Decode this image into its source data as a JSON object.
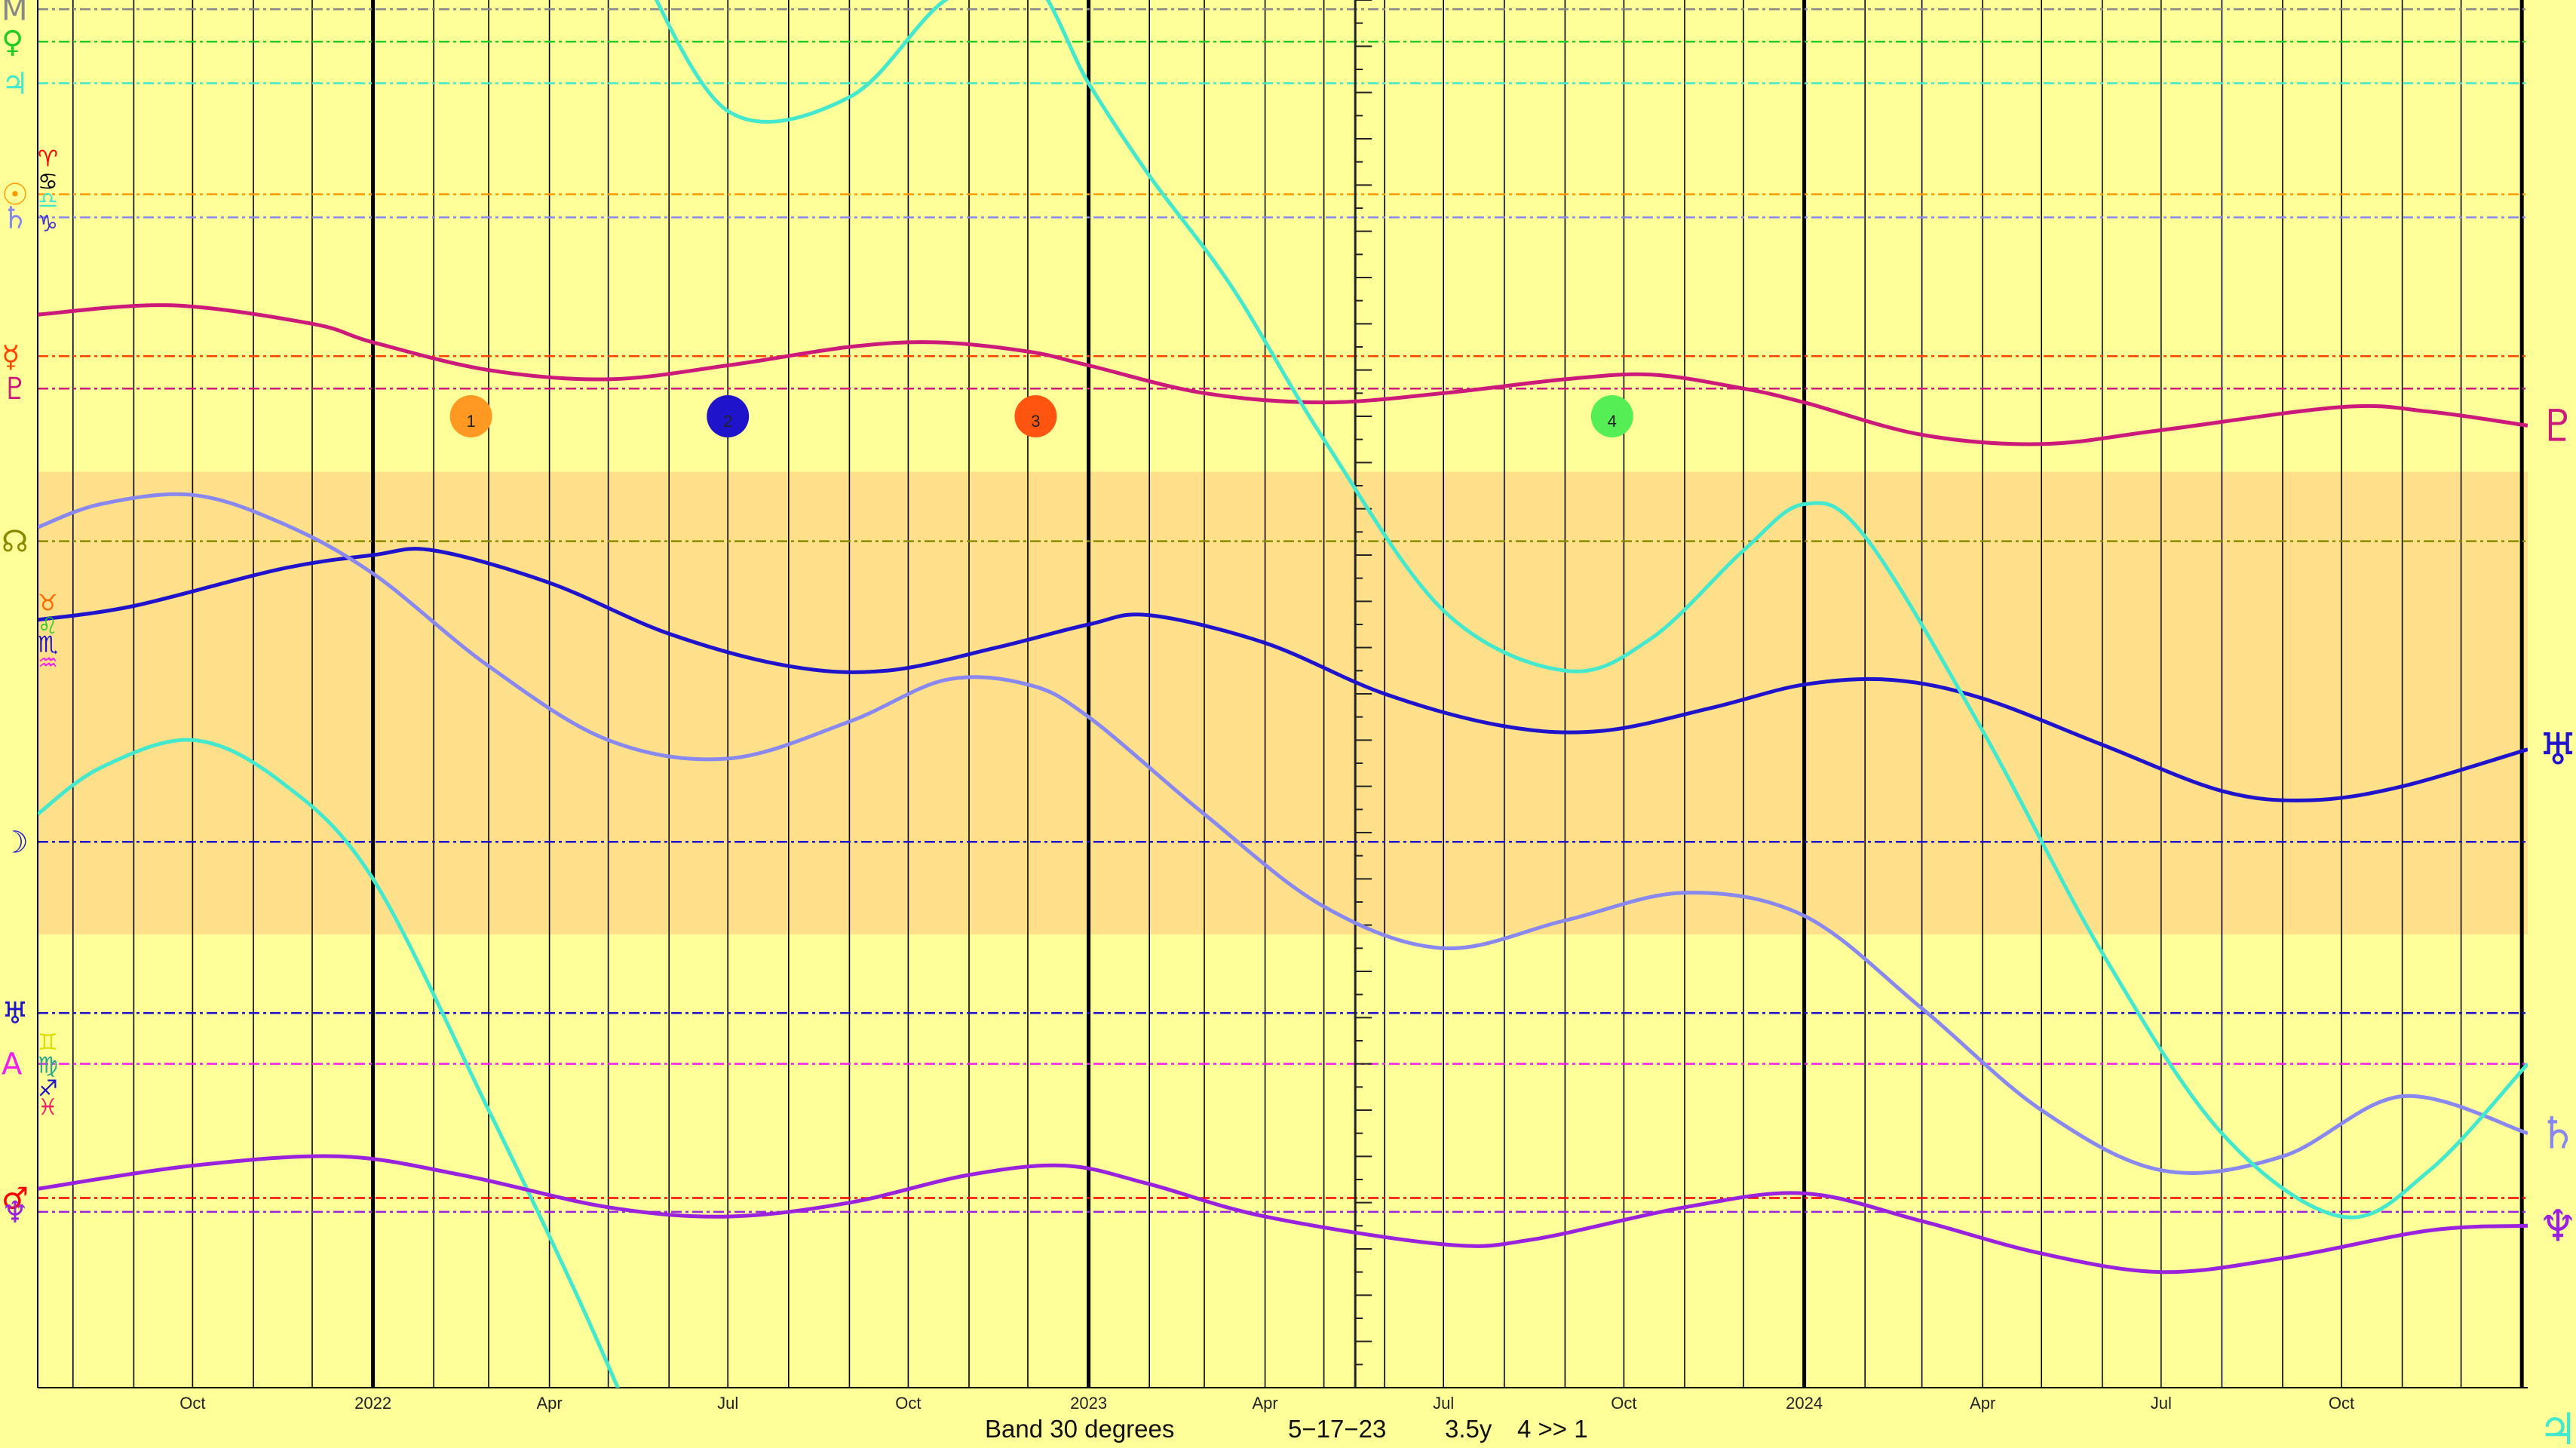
{
  "chart_data": {
    "type": "line",
    "title": "",
    "x_range": [
      "2021-07-14",
      "2025-01-04"
    ],
    "y_range": [
      0,
      30
    ],
    "band": {
      "from": 10.2,
      "to": 20.2,
      "color": "#ffe08a"
    },
    "footer": {
      "band": "Band 30 degrees",
      "date": "5−17−23",
      "span": "3.5y",
      "ratio": "4 >> 1"
    },
    "current_date": "2023-05-17",
    "year_lines": [
      "2022-01-01",
      "2023-01-01",
      "2024-01-01",
      "2025-01-01"
    ],
    "month_lines": [
      "2021-08-01",
      "2021-09-01",
      "2021-10-01",
      "2021-11-01",
      "2021-12-01",
      "2022-02-01",
      "2022-03-01",
      "2022-04-01",
      "2022-05-01",
      "2022-06-01",
      "2022-07-01",
      "2022-08-01",
      "2022-09-01",
      "2022-10-01",
      "2022-11-01",
      "2022-12-01",
      "2023-02-01",
      "2023-03-01",
      "2023-04-01",
      "2023-05-01",
      "2023-06-01",
      "2023-07-01",
      "2023-08-01",
      "2023-09-01",
      "2023-10-01",
      "2023-11-01",
      "2023-12-01",
      "2024-02-01",
      "2024-03-01",
      "2024-04-01",
      "2024-05-01",
      "2024-06-01",
      "2024-07-01",
      "2024-08-01",
      "2024-09-01",
      "2024-10-01",
      "2024-11-01",
      "2024-12-01"
    ],
    "x_tick_labels": [
      {
        "date": "2021-10-01",
        "label": "Oct"
      },
      {
        "date": "2022-01-01",
        "label": "2022"
      },
      {
        "date": "2022-04-01",
        "label": "Apr"
      },
      {
        "date": "2022-07-01",
        "label": "Jul"
      },
      {
        "date": "2022-10-01",
        "label": "Oct"
      },
      {
        "date": "2023-01-01",
        "label": "2023"
      },
      {
        "date": "2023-04-01",
        "label": "Apr"
      },
      {
        "date": "2023-07-01",
        "label": "Jul"
      },
      {
        "date": "2023-10-01",
        "label": "Oct"
      },
      {
        "date": "2024-01-01",
        "label": "2024"
      },
      {
        "date": "2024-04-01",
        "label": "Apr"
      },
      {
        "date": "2024-07-01",
        "label": "Jul"
      },
      {
        "date": "2024-10-01",
        "label": "Oct"
      }
    ],
    "series": [
      {
        "name": "Pluto",
        "color": "#cc1a7a",
        "glyph": "♇",
        "points": [
          [
            "2021-07-14",
            6.8
          ],
          [
            "2021-09-20",
            6.6
          ],
          [
            "2021-12-01",
            7.0
          ],
          [
            "2022-01-01",
            7.4
          ],
          [
            "2022-03-01",
            8.0
          ],
          [
            "2022-05-01",
            8.2
          ],
          [
            "2022-07-01",
            7.9
          ],
          [
            "2022-09-01",
            7.5
          ],
          [
            "2022-10-15",
            7.4
          ],
          [
            "2022-12-01",
            7.6
          ],
          [
            "2023-01-01",
            7.9
          ],
          [
            "2023-03-01",
            8.5
          ],
          [
            "2023-05-01",
            8.7
          ],
          [
            "2023-07-01",
            8.5
          ],
          [
            "2023-09-01",
            8.2
          ],
          [
            "2023-10-15",
            8.1
          ],
          [
            "2023-12-01",
            8.4
          ],
          [
            "2024-01-01",
            8.7
          ],
          [
            "2024-03-01",
            9.4
          ],
          [
            "2024-05-01",
            9.6
          ],
          [
            "2024-07-01",
            9.3
          ],
          [
            "2024-10-01",
            8.8
          ],
          [
            "2024-11-15",
            8.9
          ],
          [
            "2025-01-04",
            9.2
          ]
        ]
      },
      {
        "name": "Uranus",
        "color": "#1f14cc",
        "glyph": "♅",
        "points": [
          [
            "2021-07-14",
            13.4
          ],
          [
            "2021-09-01",
            13.1
          ],
          [
            "2021-11-15",
            12.3
          ],
          [
            "2022-01-01",
            12.0
          ],
          [
            "2022-02-01",
            11.9
          ],
          [
            "2022-04-01",
            12.6
          ],
          [
            "2022-06-01",
            13.7
          ],
          [
            "2022-08-01",
            14.4
          ],
          [
            "2022-09-20",
            14.5
          ],
          [
            "2022-11-15",
            14.0
          ],
          [
            "2023-01-01",
            13.5
          ],
          [
            "2023-02-01",
            13.3
          ],
          [
            "2023-04-01",
            13.9
          ],
          [
            "2023-06-01",
            15.0
          ],
          [
            "2023-08-01",
            15.7
          ],
          [
            "2023-09-20",
            15.8
          ],
          [
            "2023-11-15",
            15.3
          ],
          [
            "2024-01-01",
            14.8
          ],
          [
            "2024-02-15",
            14.7
          ],
          [
            "2024-04-01",
            15.1
          ],
          [
            "2024-06-01",
            16.1
          ],
          [
            "2024-08-01",
            17.1
          ],
          [
            "2024-09-15",
            17.3
          ],
          [
            "2024-11-01",
            17.0
          ],
          [
            "2025-01-04",
            16.2
          ]
        ]
      },
      {
        "name": "Saturn",
        "color": "#8888ee",
        "glyph": "♄",
        "points": [
          [
            "2021-07-14",
            11.4
          ],
          [
            "2021-08-15",
            10.9
          ],
          [
            "2021-10-01",
            10.7
          ],
          [
            "2021-11-15",
            11.3
          ],
          [
            "2022-01-01",
            12.4
          ],
          [
            "2022-03-01",
            14.4
          ],
          [
            "2022-05-01",
            16.0
          ],
          [
            "2022-07-01",
            16.4
          ],
          [
            "2022-09-01",
            15.6
          ],
          [
            "2022-10-20",
            14.7
          ],
          [
            "2022-12-01",
            14.8
          ],
          [
            "2023-01-01",
            15.5
          ],
          [
            "2023-03-01",
            17.6
          ],
          [
            "2023-05-01",
            19.6
          ],
          [
            "2023-07-01",
            20.5
          ],
          [
            "2023-09-01",
            19.9
          ],
          [
            "2023-11-01",
            19.3
          ],
          [
            "2024-01-01",
            19.8
          ],
          [
            "2024-03-01",
            21.8
          ],
          [
            "2024-05-01",
            24.0
          ],
          [
            "2024-07-01",
            25.3
          ],
          [
            "2024-09-01",
            25.0
          ],
          [
            "2024-11-01",
            23.7
          ],
          [
            "2025-01-04",
            24.5
          ]
        ]
      },
      {
        "name": "Jupiter",
        "color": "#44e8cc",
        "glyph": "♃",
        "points": [
          [
            "2021-07-14",
            17.6
          ],
          [
            "2021-08-15",
            16.6
          ],
          [
            "2021-10-01",
            16.0
          ],
          [
            "2021-11-15",
            16.9
          ],
          [
            "2022-01-01",
            19.0
          ],
          [
            "2022-03-01",
            24.0
          ],
          [
            "2022-04-15",
            28.0
          ],
          [
            "2022-05-15",
            30.9
          ]
        ]
      },
      {
        "name": "Jupiter",
        "color": "#44e8cc",
        "glyph": "",
        "points": [
          [
            "2022-05-15",
            -0.9
          ],
          [
            "2022-07-01",
            2.4
          ],
          [
            "2022-09-01",
            2.1
          ],
          [
            "2022-10-20",
            0.0
          ],
          [
            "2022-12-01",
            -0.5
          ],
          [
            "2023-01-01",
            1.8
          ],
          [
            "2023-02-01",
            3.8
          ],
          [
            "2023-03-15",
            6.2
          ],
          [
            "2023-05-01",
            9.5
          ],
          [
            "2023-07-01",
            13.2
          ],
          [
            "2023-09-01",
            14.5
          ],
          [
            "2023-10-15",
            13.8
          ],
          [
            "2023-12-01",
            11.9
          ],
          [
            "2024-01-01",
            10.9
          ],
          [
            "2024-02-01",
            11.6
          ],
          [
            "2024-04-01",
            15.8
          ],
          [
            "2024-06-01",
            20.6
          ],
          [
            "2024-08-01",
            24.5
          ],
          [
            "2024-10-01",
            26.3
          ],
          [
            "2024-11-15",
            25.3
          ],
          [
            "2025-01-04",
            23.0
          ]
        ]
      },
      {
        "name": "Neptune",
        "color": "#9a22dd",
        "glyph": "♆",
        "points": [
          [
            "2021-07-14",
            25.7
          ],
          [
            "2021-10-01",
            25.2
          ],
          [
            "2021-12-15",
            25.0
          ],
          [
            "2022-02-15",
            25.4
          ],
          [
            "2022-05-01",
            26.1
          ],
          [
            "2022-07-01",
            26.3
          ],
          [
            "2022-09-01",
            26.0
          ],
          [
            "2022-11-01",
            25.4
          ],
          [
            "2022-12-20",
            25.2
          ],
          [
            "2023-02-01",
            25.6
          ],
          [
            "2023-04-01",
            26.3
          ],
          [
            "2023-07-01",
            26.9
          ],
          [
            "2023-08-15",
            26.8
          ],
          [
            "2023-11-01",
            26.1
          ],
          [
            "2024-01-01",
            25.8
          ],
          [
            "2024-03-01",
            26.4
          ],
          [
            "2024-05-01",
            27.1
          ],
          [
            "2024-07-01",
            27.5
          ],
          [
            "2024-09-01",
            27.2
          ],
          [
            "2024-11-15",
            26.6
          ],
          [
            "2025-01-04",
            26.5
          ]
        ]
      }
    ],
    "series_end_glyph_colors": {
      "Pluto": "#cc1a7a",
      "Uranus": "#1f14cc",
      "Jupiter": "#44e8cc",
      "Saturn": "#8888ee",
      "Neptune": "#9a22dd"
    },
    "horizontal_levels": [
      {
        "glyph": "M",
        "y": 0.2,
        "color": "#888888"
      },
      {
        "glyph": "♀",
        "y": 0.9,
        "color": "#22cc22"
      },
      {
        "glyph": "♃",
        "y": 1.8,
        "color": "#44e8cc"
      },
      {
        "glyph": "☉",
        "y": 4.2,
        "color": "#ff9900"
      },
      {
        "glyph": "♄",
        "y": 4.7,
        "color": "#8888ee"
      },
      {
        "glyph": "☿",
        "y": 7.7,
        "color": "#ff4400"
      },
      {
        "glyph": "♇",
        "y": 8.4,
        "color": "#cc1a7a"
      },
      {
        "glyph": "☊",
        "y": 11.7,
        "color": "#8a8a00"
      },
      {
        "glyph": "☽",
        "y": 18.2,
        "color": "#1f14cc"
      },
      {
        "glyph": "♅",
        "y": 21.9,
        "color": "#1f14cc"
      },
      {
        "glyph": "A",
        "y": 23.0,
        "color": "#ee22ee"
      },
      {
        "glyph": "♂",
        "y": 25.9,
        "color": "#ff0000"
      },
      {
        "glyph": "♆",
        "y": 26.2,
        "color": "#9a22dd"
      }
    ],
    "sign_glyphs": [
      {
        "glyph": "♈",
        "y": 3.4,
        "color": "#ff0000"
      },
      {
        "glyph": "♋",
        "y": 3.9,
        "color": "#000000"
      },
      {
        "glyph": "♎",
        "y": 4.3,
        "color": "#44e8cc"
      },
      {
        "glyph": "♑",
        "y": 4.8,
        "color": "#4433cc"
      },
      {
        "glyph": "♉",
        "y": 13.0,
        "color": "#ff6600"
      },
      {
        "glyph": "♌",
        "y": 13.5,
        "color": "#22cc22"
      },
      {
        "glyph": "♏",
        "y": 13.9,
        "color": "#1f14cc"
      },
      {
        "glyph": "♒",
        "y": 14.3,
        "color": "#ee22ee"
      },
      {
        "glyph": "♊",
        "y": 22.5,
        "color": "#dddd00"
      },
      {
        "glyph": "♍",
        "y": 23.0,
        "color": "#22aa88"
      },
      {
        "glyph": "♐",
        "y": 23.5,
        "color": "#1f14cc"
      },
      {
        "glyph": "♓",
        "y": 23.9,
        "color": "#ee2266"
      }
    ],
    "markers": [
      {
        "label": "1",
        "date": "2022-02-20",
        "y": 9.0,
        "color": "#ff9922",
        "text_color": "#7a7aee"
      },
      {
        "label": "2",
        "date": "2022-07-01",
        "y": 9.0,
        "color": "#1f14cc",
        "text_color": "#ffffff"
      },
      {
        "label": "3",
        "date": "2022-12-05",
        "y": 9.0,
        "color": "#ff5511",
        "text_color": "#ffaa00"
      },
      {
        "label": "4",
        "date": "2023-09-25",
        "y": 9.0,
        "color": "#55ee55",
        "text_color": "#9a22dd"
      }
    ]
  }
}
